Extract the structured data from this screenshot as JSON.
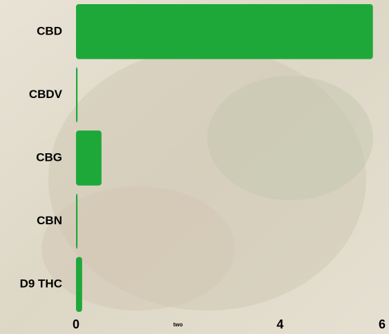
{
  "chart_data": {
    "type": "bar",
    "orientation": "horizontal",
    "categories": [
      "CBD",
      "CBDV",
      "CBG",
      "CBN",
      "D9 THC"
    ],
    "values": [
      5.82,
      0.03,
      0.5,
      0.03,
      0.12
    ],
    "color": "#1fa83a",
    "xlim": [
      0,
      6
    ],
    "xticks": [
      0,
      {
        "value": 2,
        "label": "two"
      },
      4,
      6
    ]
  }
}
